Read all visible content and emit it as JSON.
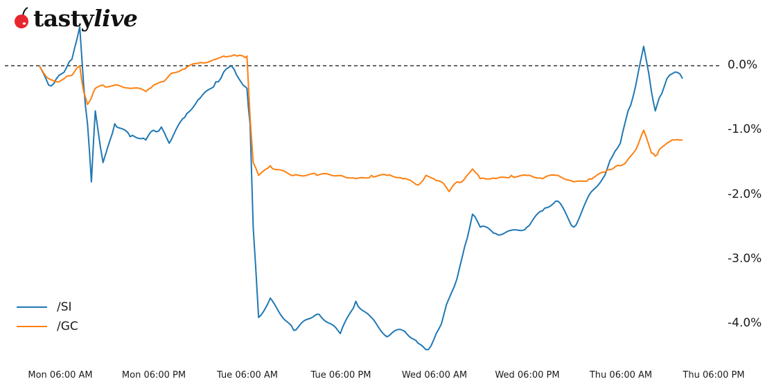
{
  "brand": {
    "logo_text_bold": "tasty",
    "logo_text_italic": "live",
    "cherry_color": "#e8262d"
  },
  "chart_data": {
    "type": "line",
    "title": "",
    "xlabel": "",
    "ylabel": "",
    "x_tick_labels": [
      "Mon 06:00 AM",
      "Mon 06:00 PM",
      "Tue 06:00 AM",
      "Tue 06:00 PM",
      "Wed 06:00 AM",
      "Wed 06:00 PM",
      "Thu 06:00 AM",
      "Thu 06:00 PM"
    ],
    "y_tick_labels": [
      "0.0%",
      "-1.0%",
      "-2.0%",
      "-3.0%",
      "-4.0%"
    ],
    "y_ticks": [
      0.0,
      -1.0,
      -2.0,
      -3.0,
      -4.0
    ],
    "ylim": [
      -4.3,
      0.7
    ],
    "y_axis_position": "right",
    "grid": false,
    "reference_line": {
      "y": 0.0,
      "style": "dashed",
      "color": "#333333"
    },
    "legend_position": "lower left",
    "x_hours_from_mon_0600": [
      -2.7,
      -1.5,
      -0.5,
      0.5,
      1.5,
      2.5,
      3.0,
      3.5,
      4.0,
      4.5,
      5.5,
      7,
      9,
      11,
      12,
      13,
      14,
      16,
      18,
      20,
      21,
      22,
      22.7,
      23.5,
      24,
      24.4,
      24.8,
      25.5,
      27,
      30,
      33,
      36,
      38,
      40,
      42,
      44,
      46,
      47,
      48,
      49,
      50,
      51,
      52,
      53,
      54,
      56,
      58,
      60,
      62,
      64,
      66,
      68,
      70,
      71,
      72,
      73,
      74,
      75,
      76,
      76.5,
      77,
      78,
      79,
      80
    ],
    "series": [
      {
        "name": "/SI",
        "color": "#1f77b4",
        "values": [
          0.0,
          -0.3,
          -0.2,
          -0.1,
          0.1,
          0.6,
          -0.3,
          -0.9,
          -1.8,
          -0.7,
          -1.5,
          -0.9,
          -1.1,
          -1.15,
          -1.0,
          -0.95,
          -1.2,
          -0.8,
          -0.5,
          -0.25,
          -0.1,
          0.0,
          -0.15,
          -0.3,
          -0.35,
          -0.9,
          -2.5,
          -3.9,
          -3.6,
          -4.1,
          -3.85,
          -4.15,
          -3.65,
          -3.9,
          -4.2,
          -4.1,
          -4.3,
          -4.4,
          -4.25,
          -4.0,
          -3.6,
          -3.3,
          -2.8,
          -2.3,
          -2.5,
          -2.6,
          -2.55,
          -2.5,
          -2.25,
          -2.1,
          -2.5,
          -2.0,
          -1.7,
          -1.4,
          -1.2,
          -0.7,
          -0.3,
          0.3,
          -0.4,
          -0.7,
          -0.5,
          -0.2,
          -0.1,
          -0.2
        ]
      },
      {
        "name": "/GC",
        "color": "#ff7f0e",
        "values": [
          0.0,
          -0.2,
          -0.25,
          -0.2,
          -0.15,
          0.0,
          -0.4,
          -0.6,
          -0.5,
          -0.35,
          -0.3,
          -0.3,
          -0.35,
          -0.4,
          -0.3,
          -0.25,
          -0.15,
          -0.05,
          0.05,
          0.1,
          0.15,
          0.15,
          0.15,
          0.15,
          0.15,
          -0.8,
          -1.5,
          -1.7,
          -1.55,
          -1.7,
          -1.7,
          -1.7,
          -1.75,
          -1.7,
          -1.7,
          -1.75,
          -1.85,
          -1.7,
          -1.75,
          -1.8,
          -1.95,
          -1.8,
          -1.75,
          -1.6,
          -1.75,
          -1.75,
          -1.7,
          -1.7,
          -1.75,
          -1.7,
          -1.8,
          -1.75,
          -1.65,
          -1.6,
          -1.55,
          -1.45,
          -1.3,
          -1.0,
          -1.35,
          -1.4,
          -1.3,
          -1.2,
          -1.15,
          -1.15
        ]
      }
    ]
  },
  "legend": {
    "items": [
      {
        "label": "/SI",
        "color": "#1f77b4"
      },
      {
        "label": "/GC",
        "color": "#ff7f0e"
      }
    ]
  }
}
